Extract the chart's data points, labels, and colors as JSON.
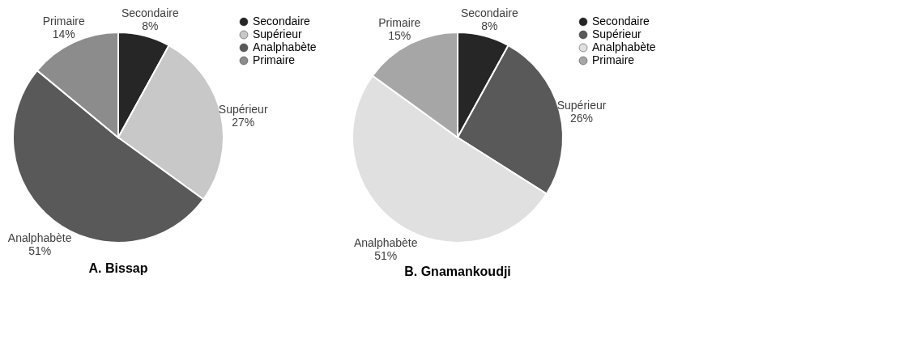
{
  "chart_data": [
    {
      "type": "pie",
      "title": "A. Bissap",
      "categories": [
        "Secondaire",
        "Supérieur",
        "Analphabète",
        "Primaire"
      ],
      "values": [
        8,
        27,
        51,
        14
      ],
      "value_labels": [
        "8%",
        "27%",
        "51%",
        "14%"
      ],
      "colors": [
        "#262626",
        "#c8c8c8",
        "#595959",
        "#8c8c8c"
      ],
      "legend": "right"
    },
    {
      "type": "pie",
      "title": "B. Gnamankoudji",
      "categories": [
        "Secondaire",
        "Supérieur",
        "Analphabète",
        "Primaire"
      ],
      "values": [
        8,
        26,
        51,
        15
      ],
      "value_labels": [
        "8%",
        "26%",
        "51%",
        "15%"
      ],
      "colors": [
        "#262626",
        "#595959",
        "#e0e0e0",
        "#a6a6a6"
      ],
      "legend": "right"
    }
  ]
}
